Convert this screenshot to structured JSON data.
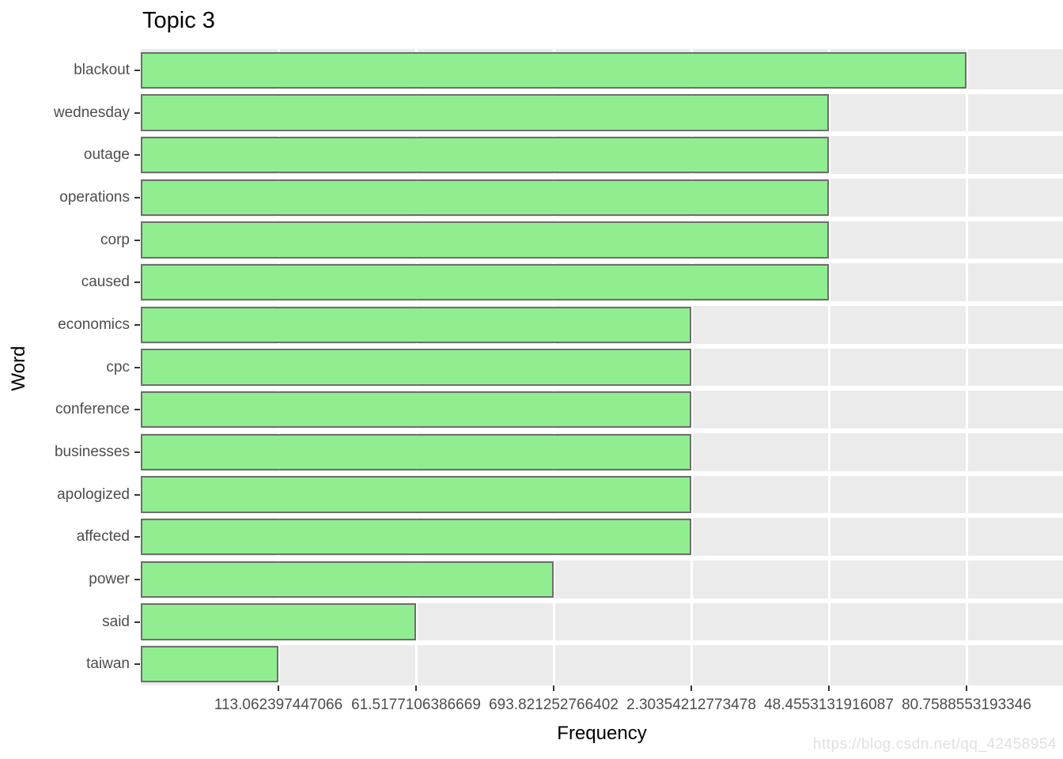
{
  "window": {
    "watermark": "https://blog.csdn.net/qq_42458954"
  },
  "chart_data": {
    "type": "bar",
    "orientation": "horizontal",
    "title": "Topic 3",
    "xlabel": "Frequency",
    "ylabel": "Word",
    "categories": [
      "blackout",
      "wednesday",
      "outage",
      "operations",
      "corp",
      "caused",
      "economics",
      "cpc",
      "conference",
      "businesses",
      "apologized",
      "affected",
      "power",
      "said",
      "taiwan"
    ],
    "values": [
      6,
      5,
      5,
      5,
      5,
      5,
      4,
      4,
      4,
      4,
      4,
      4,
      3,
      2,
      1
    ],
    "x_ticks": [
      1,
      2,
      3,
      4,
      5,
      6
    ],
    "x_tick_labels": [
      "113.062397447066",
      "61.5177106386669",
      "693.821252766402",
      "2.30354212773478",
      "48.4553131916087",
      "80.7588553193346"
    ],
    "xlim": [
      0,
      6.7
    ],
    "legend": "none",
    "grid": "white major gridlines on gray panel, row separators between bars",
    "colors": {
      "bar_fill": "#90EE90",
      "bar_border": "#6E6E6E",
      "panel_bg": "#EBEBEB",
      "gridline": "#FFFFFF",
      "tick_text": "#4D4D4D",
      "tick_mark": "#333333",
      "title_text": "#000000",
      "watermark_text": "#E0E0E0"
    }
  }
}
